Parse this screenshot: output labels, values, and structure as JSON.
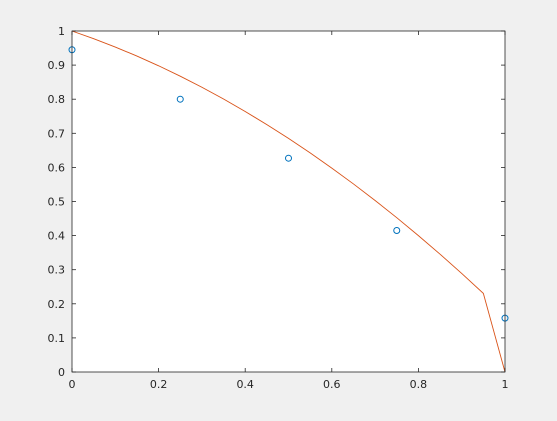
{
  "chart_data": {
    "type": "scatter",
    "title": "",
    "xlabel": "",
    "ylabel": "",
    "xlim": [
      0,
      1
    ],
    "ylim": [
      0,
      1
    ],
    "grid": false,
    "x_ticks": [
      "0",
      "0.2",
      "0.4",
      "0.6",
      "0.8",
      "1"
    ],
    "y_ticks": [
      "0",
      "0.1",
      "0.2",
      "0.3",
      "0.4",
      "0.5",
      "0.6",
      "0.7",
      "0.8",
      "0.9",
      "1"
    ],
    "series": [
      {
        "type": "scatter",
        "marker": "circle-open",
        "color": "#0072bd",
        "x": [
          0,
          0.25,
          0.5,
          0.75,
          1
        ],
        "y": [
          0.945,
          0.8,
          0.627,
          0.415,
          0.158
        ]
      },
      {
        "type": "line",
        "color": "#d95319",
        "x": [
          0,
          0.05,
          0.1,
          0.15,
          0.2,
          0.25,
          0.3,
          0.35,
          0.4,
          0.45,
          0.5,
          0.55,
          0.6,
          0.65,
          0.7,
          0.75,
          0.8,
          0.85,
          0.9,
          0.95,
          1
        ],
        "y": [
          1.0,
          0.9775,
          0.953,
          0.9265,
          0.898,
          0.8675,
          0.835,
          0.8005,
          0.764,
          0.7255,
          0.685,
          0.6425,
          0.598,
          0.5515,
          0.503,
          0.4525,
          0.4,
          0.3455,
          0.289,
          0.2305,
          0.0
        ]
      }
    ]
  }
}
